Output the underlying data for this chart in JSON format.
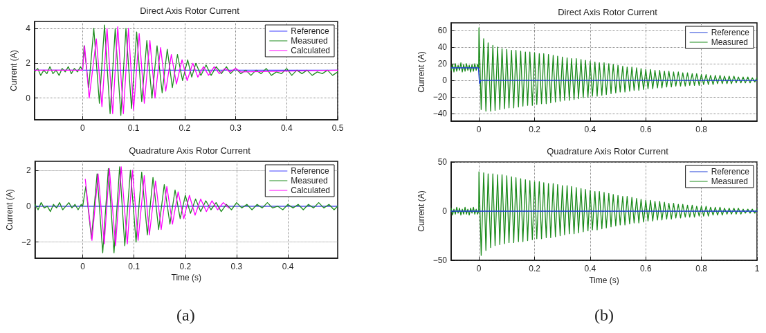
{
  "chart_data": [
    {
      "type": "line",
      "title": "Direct Axis Rotor Current",
      "ylabel": "Current (A)",
      "xlim": [
        -0.094,
        0.5
      ],
      "xticks": [
        0,
        0.1,
        0.2,
        0.3,
        0.4,
        0.5
      ],
      "ylim": [
        -1.25,
        4.4
      ],
      "yticks": [
        0,
        2,
        4
      ],
      "grid": true,
      "legend": "top right",
      "marker": "none",
      "line_style": "solid",
      "series": [
        {
          "name": "Reference",
          "color": "#4040ff",
          "x": [
            -0.094,
            0.5
          ],
          "values": [
            1.6,
            1.6
          ]
        },
        {
          "name": "Measured",
          "color": "#1e8c1e",
          "x": [
            -0.094,
            -0.088,
            -0.082,
            -0.076,
            -0.07,
            -0.064,
            -0.058,
            -0.052,
            -0.046,
            -0.04,
            -0.034,
            -0.028,
            -0.022,
            -0.016,
            -0.01,
            -0.004,
            0,
            0.003,
            0.012,
            0.022,
            0.033,
            0.043,
            0.054,
            0.064,
            0.075,
            0.085,
            0.096,
            0.106,
            0.116,
            0.126,
            0.136,
            0.146,
            0.156,
            0.166,
            0.176,
            0.186,
            0.196,
            0.206,
            0.214,
            0.222,
            0.232,
            0.242,
            0.252,
            0.262,
            0.272,
            0.282,
            0.29,
            0.3,
            0.31,
            0.32,
            0.33,
            0.34,
            0.35,
            0.36,
            0.37,
            0.38,
            0.39,
            0.4,
            0.41,
            0.42,
            0.43,
            0.44,
            0.45,
            0.46,
            0.47,
            0.48,
            0.49,
            0.5
          ],
          "values": [
            1.5,
            1.7,
            1.3,
            1.6,
            1.4,
            1.8,
            1.4,
            1.6,
            1.3,
            1.7,
            1.5,
            1.8,
            1.4,
            1.7,
            1.5,
            1.8,
            1.6,
            3.0,
            0.6,
            4.0,
            -0.3,
            4.2,
            -0.9,
            4.0,
            -1.0,
            4.0,
            -0.6,
            3.8,
            -0.2,
            3.3,
            0.0,
            3.0,
            0.3,
            2.8,
            0.6,
            2.5,
            1.0,
            2.2,
            1.2,
            2.0,
            1.3,
            1.9,
            1.3,
            1.8,
            1.4,
            1.8,
            1.4,
            1.7,
            1.4,
            1.6,
            1.3,
            1.6,
            1.4,
            1.7,
            1.3,
            1.5,
            1.4,
            1.7,
            1.3,
            1.6,
            1.4,
            1.6,
            1.3,
            1.5,
            1.4,
            1.6,
            1.3,
            1.5
          ]
        },
        {
          "name": "Calculated",
          "color": "#ff00ff",
          "x": [
            -0.094,
            0,
            0.004,
            0.013,
            0.027,
            0.038,
            0.048,
            0.059,
            0.069,
            0.08,
            0.09,
            0.1,
            0.111,
            0.121,
            0.132,
            0.142,
            0.153,
            0.163,
            0.174,
            0.184,
            0.195,
            0.205,
            0.216,
            0.226,
            0.237,
            0.247,
            0.258,
            0.268,
            0.279,
            0.289,
            0.3,
            0.31,
            0.5
          ],
          "values": [
            1.6,
            1.6,
            3.0,
            0.0,
            3.4,
            -0.5,
            4.0,
            -0.9,
            4.1,
            -0.9,
            4.0,
            -0.7,
            3.7,
            -0.3,
            3.3,
            0.0,
            2.9,
            0.4,
            2.5,
            0.8,
            2.2,
            1.0,
            2.0,
            1.2,
            1.8,
            1.3,
            1.8,
            1.4,
            1.7,
            1.5,
            1.7,
            1.5,
            1.6
          ]
        }
      ]
    },
    {
      "type": "line",
      "title": "Quadrature Axis Rotor Current",
      "xlabel": "Time (s)",
      "ylabel": "Current (A)",
      "xlim": [
        -0.093,
        0.497
      ],
      "xticks": [
        0,
        0.1,
        0.2,
        0.3,
        0.4
      ],
      "ylim": [
        -2.9,
        2.5
      ],
      "yticks": [
        {
          "value": -2,
          "label": "−2"
        },
        0,
        2
      ],
      "grid": true,
      "legend": "top right",
      "marker": "none",
      "line_style": "solid",
      "annotations": [
        "(a)"
      ],
      "series": [
        {
          "name": "Reference",
          "color": "#4040ff",
          "x": [
            -0.093,
            0.497
          ],
          "values": [
            0,
            0
          ]
        },
        {
          "name": "Measured",
          "color": "#1e8c1e",
          "x": [
            -0.093,
            -0.087,
            -0.081,
            -0.075,
            -0.069,
            -0.063,
            -0.057,
            -0.051,
            -0.045,
            -0.039,
            -0.033,
            -0.027,
            -0.021,
            -0.015,
            -0.009,
            -0.003,
            0,
            0.006,
            0.017,
            0.028,
            0.039,
            0.05,
            0.061,
            0.072,
            0.082,
            0.093,
            0.104,
            0.115,
            0.126,
            0.137,
            0.148,
            0.159,
            0.17,
            0.18,
            0.19,
            0.2,
            0.21,
            0.22,
            0.23,
            0.24,
            0.25,
            0.26,
            0.27,
            0.28,
            0.29,
            0.3,
            0.31,
            0.32,
            0.33,
            0.34,
            0.35,
            0.36,
            0.37,
            0.38,
            0.39,
            0.4,
            0.41,
            0.42,
            0.43,
            0.44,
            0.45,
            0.46,
            0.47,
            0.48,
            0.49,
            0.497
          ],
          "values": [
            0.1,
            -0.2,
            0.2,
            -0.1,
            0.0,
            -0.3,
            0.1,
            -0.1,
            0.2,
            -0.2,
            0.0,
            0.2,
            -0.1,
            0.1,
            -0.2,
            0.1,
            0.0,
            1.1,
            -1.8,
            1.8,
            -2.6,
            2.1,
            -2.6,
            2.2,
            -2.2,
            2.0,
            -2.0,
            1.9,
            -1.6,
            1.6,
            -1.3,
            1.2,
            -1.0,
            0.9,
            -0.7,
            0.6,
            -0.4,
            0.4,
            -0.3,
            0.3,
            -0.2,
            0.2,
            -0.3,
            0.1,
            -0.2,
            0.2,
            -0.1,
            0.1,
            -0.2,
            0.1,
            -0.1,
            0.2,
            -0.1,
            0.0,
            -0.2,
            0.1,
            -0.1,
            0.1,
            -0.2,
            0.1,
            -0.1,
            0.2,
            -0.1,
            0.1,
            -0.2,
            0.0
          ]
        },
        {
          "name": "Calculated",
          "color": "#ff00ff",
          "x": [
            0.005,
            0.018,
            0.03,
            0.042,
            0.052,
            0.064,
            0.075,
            0.087,
            0.097,
            0.108,
            0.12,
            0.13,
            0.142,
            0.153,
            0.164,
            0.175,
            0.186,
            0.197,
            0.208,
            0.219,
            0.23,
            0.241,
            0.252,
            0.263,
            0.274,
            0.285
          ],
          "values": [
            1.5,
            -1.9,
            1.8,
            -2.1,
            2.1,
            -2.2,
            2.2,
            -2.1,
            2.0,
            -1.9,
            1.7,
            -1.6,
            1.4,
            -1.3,
            1.1,
            -1.0,
            0.8,
            -0.7,
            0.6,
            -0.5,
            0.4,
            -0.3,
            0.3,
            -0.2,
            0.2,
            -0.1
          ]
        }
      ]
    },
    {
      "type": "line",
      "title": "Direct Axis Rotor Current",
      "ylabel": "Current (A)",
      "xlim": [
        -0.1,
        1
      ],
      "xticks": [
        0,
        0.2,
        0.4,
        0.6,
        0.8
      ],
      "ylim": [
        -49,
        69
      ],
      "yticks": [
        {
          "value": -40,
          "label": "−40"
        },
        {
          "value": -20,
          "label": "−20"
        },
        0,
        20,
        40,
        60
      ],
      "grid": true,
      "legend": "top right",
      "marker": "none",
      "line_style": "solid",
      "series": [
        {
          "name": "Reference",
          "color": "#1f3fd6",
          "x": [
            -0.1,
            -0.002,
            0.002,
            0.006,
            1
          ],
          "values": [
            15,
            15,
            -4,
            0,
            0
          ]
        },
        {
          "name": "Measured",
          "color": "#1a8a1a",
          "x": [
            -0.1,
            -0.095,
            -0.09,
            -0.085,
            -0.08,
            -0.075,
            -0.07,
            -0.065,
            -0.06,
            -0.055,
            -0.05,
            -0.045,
            -0.04,
            -0.035,
            -0.03,
            -0.025,
            -0.02,
            -0.015,
            -0.01,
            -0.005,
            -0.001,
            0,
            0.008,
            0.017,
            0.025,
            0.033,
            0.042,
            0.05,
            0.058,
            0.067,
            0.075,
            0.083,
            0.092,
            0.1,
            0.108,
            0.117,
            0.125,
            0.133,
            0.142,
            0.15,
            0.158,
            0.167,
            0.175,
            0.183,
            0.192,
            0.2,
            0.208,
            0.217,
            0.225,
            0.233,
            0.242,
            0.25,
            0.258,
            0.267,
            0.275,
            0.283,
            0.292,
            0.3,
            0.308,
            0.317,
            0.325,
            0.333,
            0.342,
            0.35,
            0.358,
            0.367,
            0.375,
            0.383,
            0.392,
            0.4,
            0.408,
            0.417,
            0.425,
            0.433,
            0.442,
            0.45,
            0.458,
            0.467,
            0.475,
            0.483,
            0.492,
            0.5,
            0.508,
            0.517,
            0.525,
            0.533,
            0.542,
            0.55,
            0.558,
            0.567,
            0.575,
            0.583,
            0.592,
            0.6,
            0.608,
            0.617,
            0.625,
            0.633,
            0.642,
            0.65,
            0.658,
            0.667,
            0.675,
            0.683,
            0.692,
            0.7,
            0.708,
            0.717,
            0.725,
            0.733,
            0.742,
            0.75,
            0.758,
            0.767,
            0.775,
            0.783,
            0.792,
            0.8,
            0.808,
            0.817,
            0.825,
            0.833,
            0.842,
            0.85,
            0.858,
            0.867,
            0.875,
            0.883,
            0.892,
            0.9,
            0.908,
            0.917,
            0.925,
            0.933,
            0.942,
            0.95,
            0.958,
            0.967,
            0.975,
            0.983,
            0.992,
            1
          ],
          "values": [
            12,
            19,
            10,
            20,
            11,
            18,
            12,
            21,
            10,
            19,
            11,
            20,
            12,
            18,
            10,
            19,
            11,
            20,
            12,
            19,
            15,
            63,
            -35,
            50,
            -37,
            45,
            -37,
            42,
            -36,
            40,
            -35,
            38,
            -34,
            37,
            -33,
            36,
            -33,
            36,
            -32,
            35,
            -31,
            34,
            -30,
            34,
            -30,
            33,
            -29,
            32,
            -28,
            32,
            -28,
            31,
            -27,
            30,
            -26,
            29,
            -25,
            28,
            -24,
            27,
            -24,
            26,
            -23,
            26,
            -22,
            25,
            -21,
            24,
            -20,
            23,
            -19,
            22,
            -19,
            21,
            -18,
            21,
            -17,
            20,
            -16,
            19,
            -15,
            18,
            -14,
            17,
            -14,
            16,
            -13,
            16,
            -12,
            15,
            -12,
            14,
            -11,
            13,
            -10,
            13,
            -10,
            12,
            -9,
            12,
            -9,
            11,
            -8,
            11,
            -8,
            10,
            -7,
            10,
            -7,
            9,
            -7,
            9,
            -6,
            8,
            -6,
            8,
            -6,
            7,
            -5,
            7,
            -5,
            6,
            -5,
            6,
            -4,
            6,
            -4,
            5,
            -4,
            5,
            -4,
            5,
            -3,
            4,
            -3,
            4,
            -3,
            4,
            -3,
            3,
            -2,
            3
          ]
        }
      ]
    },
    {
      "type": "line",
      "title": "Quadrature Axis Rotor Current",
      "xlabel": "Time (s)",
      "ylabel": "Current (A)",
      "xlim": [
        -0.1,
        1
      ],
      "xticks": [
        0,
        0.2,
        0.4,
        0.6,
        0.8,
        1
      ],
      "ylim": [
        -50,
        50
      ],
      "yticks": [
        {
          "value": -50,
          "label": "−50"
        },
        0,
        50
      ],
      "grid": true,
      "legend": "top right",
      "marker": "none",
      "line_style": "solid",
      "annotations": [
        "(b)"
      ],
      "series": [
        {
          "name": "Reference",
          "color": "#1f3fd6",
          "x": [
            -0.1,
            1
          ],
          "values": [
            0,
            0
          ]
        },
        {
          "name": "Measured",
          "color": "#1a8a1a",
          "x": [
            -0.1,
            -0.095,
            -0.09,
            -0.085,
            -0.08,
            -0.075,
            -0.07,
            -0.065,
            -0.06,
            -0.055,
            -0.05,
            -0.045,
            -0.04,
            -0.035,
            -0.03,
            -0.025,
            -0.02,
            -0.015,
            -0.01,
            -0.005,
            -0.001,
            0,
            0.008,
            0.017,
            0.025,
            0.033,
            0.042,
            0.05,
            0.058,
            0.067,
            0.075,
            0.083,
            0.092,
            0.1,
            0.108,
            0.117,
            0.125,
            0.133,
            0.142,
            0.15,
            0.158,
            0.167,
            0.175,
            0.183,
            0.192,
            0.2,
            0.208,
            0.217,
            0.225,
            0.233,
            0.242,
            0.25,
            0.258,
            0.267,
            0.275,
            0.283,
            0.292,
            0.3,
            0.308,
            0.317,
            0.325,
            0.333,
            0.342,
            0.35,
            0.358,
            0.367,
            0.375,
            0.383,
            0.392,
            0.4,
            0.408,
            0.417,
            0.425,
            0.433,
            0.442,
            0.45,
            0.458,
            0.467,
            0.475,
            0.483,
            0.492,
            0.5,
            0.508,
            0.517,
            0.525,
            0.533,
            0.542,
            0.55,
            0.558,
            0.567,
            0.575,
            0.583,
            0.592,
            0.6,
            0.608,
            0.617,
            0.625,
            0.633,
            0.642,
            0.65,
            0.658,
            0.667,
            0.675,
            0.683,
            0.692,
            0.7,
            0.708,
            0.717,
            0.725,
            0.733,
            0.742,
            0.75,
            0.758,
            0.767,
            0.775,
            0.783,
            0.792,
            0.8,
            0.808,
            0.817,
            0.825,
            0.833,
            0.842,
            0.85,
            0.858,
            0.867,
            0.875,
            0.883,
            0.892,
            0.9,
            0.908,
            0.917,
            0.925,
            0.933,
            0.942,
            0.95,
            0.958,
            0.967,
            0.975,
            0.983,
            0.992,
            1
          ],
          "values": [
            3,
            -4,
            2,
            -3,
            4,
            -2,
            3,
            -4,
            2,
            -3,
            4,
            -3,
            2,
            -4,
            3,
            -2,
            4,
            -3,
            2,
            -3,
            0,
            40,
            -45,
            39,
            -40,
            38,
            -37,
            38,
            -35,
            37,
            -34,
            37,
            -33,
            36,
            -32,
            35,
            -32,
            34,
            -31,
            33,
            -31,
            32,
            -30,
            31,
            -29,
            30,
            -28,
            30,
            -28,
            29,
            -27,
            28,
            -27,
            28,
            -26,
            27,
            -25,
            26,
            -24,
            26,
            -23,
            25,
            -23,
            24,
            -22,
            23,
            -21,
            22,
            -20,
            21,
            -19,
            20,
            -19,
            20,
            -18,
            19,
            -17,
            18,
            -16,
            17,
            -15,
            16,
            -14,
            15,
            -14,
            15,
            -13,
            14,
            -12,
            13,
            -12,
            12,
            -11,
            11,
            -10,
            11,
            -10,
            10,
            -9,
            10,
            -9,
            9,
            -8,
            8,
            -8,
            8,
            -7,
            7,
            -7,
            7,
            -6,
            6,
            -6,
            6,
            -6,
            5,
            -5,
            5,
            -5,
            5,
            -5,
            4,
            -4,
            4,
            -4,
            4,
            -4,
            3,
            -3,
            3,
            -3,
            3,
            -3,
            3,
            -3,
            2,
            -2,
            2,
            -2,
            2,
            -2,
            2
          ]
        }
      ]
    }
  ]
}
